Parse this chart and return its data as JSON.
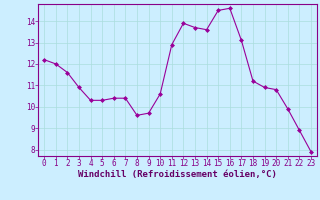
{
  "x": [
    0,
    1,
    2,
    3,
    4,
    5,
    6,
    7,
    8,
    9,
    10,
    11,
    12,
    13,
    14,
    15,
    16,
    17,
    18,
    19,
    20,
    21,
    22,
    23
  ],
  "y": [
    12.2,
    12.0,
    11.6,
    10.9,
    10.3,
    10.3,
    10.4,
    10.4,
    9.6,
    9.7,
    10.6,
    12.9,
    13.9,
    13.7,
    13.6,
    14.5,
    14.6,
    13.1,
    11.2,
    10.9,
    10.8,
    9.9,
    8.9,
    7.9
  ],
  "line_color": "#990099",
  "marker": "D",
  "marker_size": 2,
  "bg_color": "#cceeff",
  "grid_color": "#aadddd",
  "xlabel": "Windchill (Refroidissement éolien,°C)",
  "ylim": [
    7.7,
    14.8
  ],
  "xlim": [
    -0.5,
    23.5
  ],
  "yticks": [
    8,
    9,
    10,
    11,
    12,
    13,
    14
  ],
  "xticks": [
    0,
    1,
    2,
    3,
    4,
    5,
    6,
    7,
    8,
    9,
    10,
    11,
    12,
    13,
    14,
    15,
    16,
    17,
    18,
    19,
    20,
    21,
    22,
    23
  ],
  "tick_label_color": "#880088",
  "xlabel_color": "#660066",
  "axis_color": "#880088",
  "label_fontsize": 6.5,
  "tick_fontsize": 5.5
}
